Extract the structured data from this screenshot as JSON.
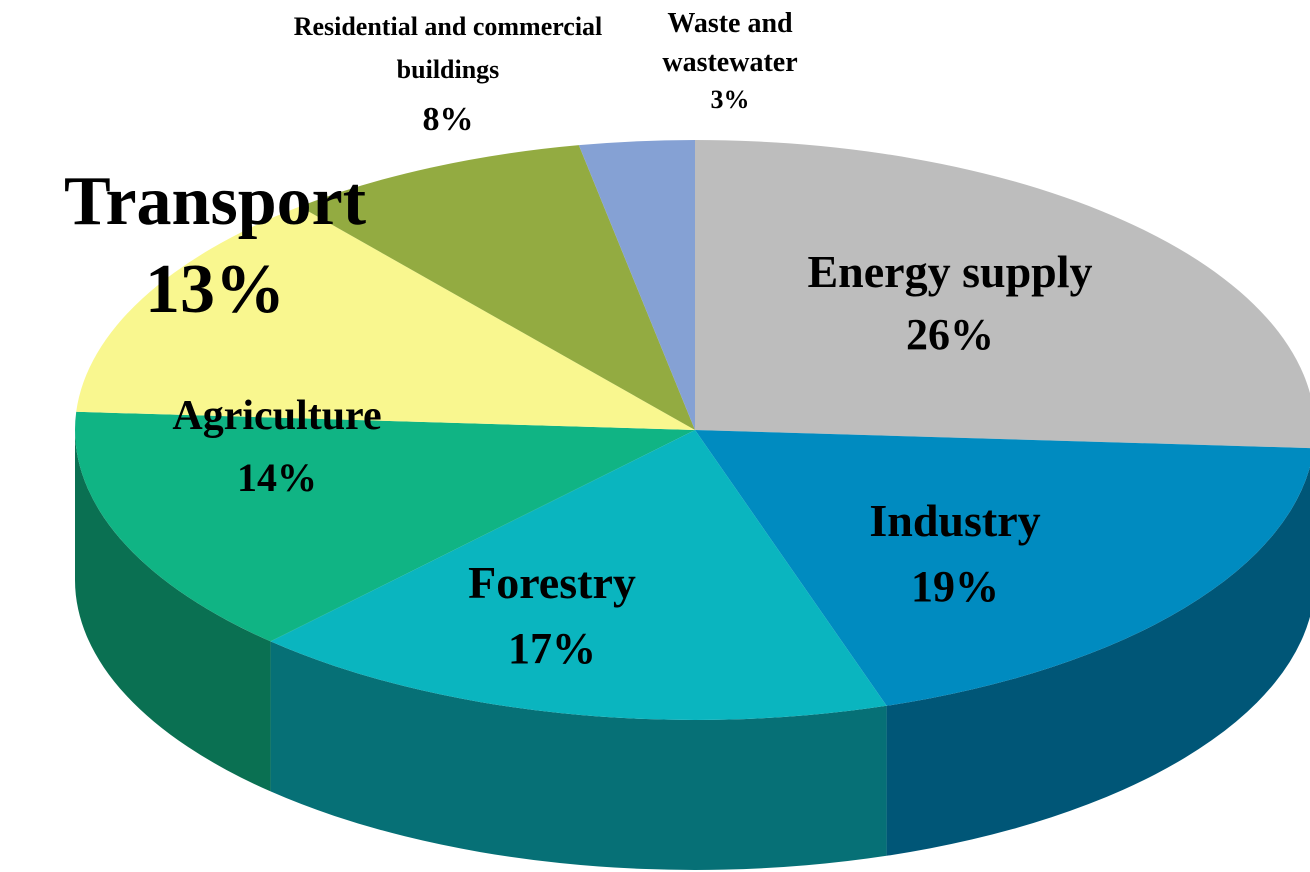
{
  "chart_data": {
    "type": "pie",
    "categories": [
      "Energy supply",
      "Industry",
      "Forestry",
      "Agriculture",
      "Transport",
      "Residential and commercial buildings",
      "Waste and wastewater"
    ],
    "values": [
      26,
      19,
      17,
      14,
      13,
      8,
      3
    ],
    "value_labels": [
      "26%",
      "19%",
      "17%",
      "14%",
      "13%",
      "8%",
      "3%"
    ],
    "colors": [
      "#bdbdbd",
      "#008bc0",
      "#0ab5bf",
      "#10b484",
      "#f9f78f",
      "#93ab41",
      "#85a1d4"
    ]
  }
}
